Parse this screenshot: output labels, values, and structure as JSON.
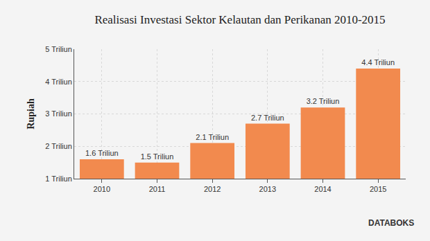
{
  "chart_data": {
    "type": "bar",
    "title": "Realisasi Investasi Sektor Kelautan dan Perikanan 2010-2015",
    "y_label": "Rupiah",
    "categories": [
      "2010",
      "2011",
      "2012",
      "2013",
      "2014",
      "2015"
    ],
    "values": [
      1.6,
      1.5,
      2.1,
      2.7,
      3.2,
      4.4
    ],
    "value_labels": [
      "1.6 Triliun",
      "1.5 Triliun",
      "2.1 Triliun",
      "2.7 Triliun",
      "3.2 Triliun",
      "4.4 Triliun"
    ],
    "data_labels": true,
    "color": "#f28a4e",
    "ylim": [
      1,
      5
    ],
    "yticks": [
      {
        "value": 1,
        "label": "1 Triliun"
      },
      {
        "value": 2,
        "label": "2 Triliun"
      },
      {
        "value": 3,
        "label": "3 Triliun"
      },
      {
        "value": 4,
        "label": "4 Triliun"
      },
      {
        "value": 5,
        "label": "5 Triliun"
      }
    ],
    "grid": true,
    "annotations": [
      "DATABOKS"
    ]
  }
}
